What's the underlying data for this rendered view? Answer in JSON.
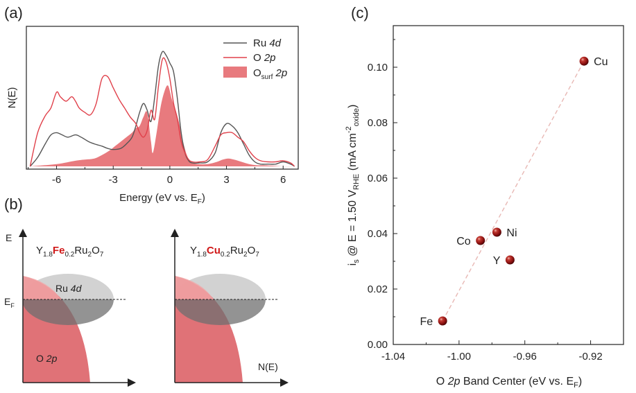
{
  "panels": {
    "a": {
      "label": "(a)"
    },
    "b": {
      "label": "(b)"
    },
    "c": {
      "label": "(c)"
    }
  },
  "colors": {
    "ru": "#555555",
    "o": "#e0404a",
    "osurf_fill": "#e87a7e",
    "sphere": "#8b1010",
    "fit_line": "#e8b8b4",
    "accent_red": "#d01818"
  },
  "pdos": {
    "ylabel": "N(E)",
    "xlabel": "Energy (eV vs. E",
    "xlabel_sub": "F",
    "xlabel_close": ")",
    "legend": {
      "ru_main": "Ru ",
      "ru_em": "4d",
      "o_main": "O ",
      "o_em": "2p",
      "osurf_main": "O",
      "osurf_sub": "surf",
      "osurf_em": " 2p"
    }
  },
  "schematic": {
    "left": {
      "formula_Y": "Y",
      "formula_Ysub": "1.8",
      "formula_dopant": "Fe",
      "formula_dsub": "0.2",
      "formula_Ru": "Ru",
      "formula_Rusub": "2",
      "formula_O": "O",
      "formula_Osub": "7",
      "energy_axis": "E",
      "fermi": "E",
      "fermi_sub": "F",
      "ru_band_main": "Ru ",
      "ru_band_em": "4d",
      "o_band_main": "O ",
      "o_band_em": "2p"
    },
    "right": {
      "formula_Y": "Y",
      "formula_Ysub": "1.8",
      "formula_dopant": "Cu",
      "formula_dsub": "0.2",
      "formula_Ru": "Ru",
      "formula_Rusub": "2",
      "formula_O": "O",
      "formula_Osub": "7",
      "dos_axis": "N(E)"
    }
  },
  "chart_data": [
    {
      "type": "line",
      "title": "",
      "xlabel": "Energy (eV vs. EF)",
      "ylabel": "N(E)",
      "xlim": [
        -7.6,
        6.8
      ],
      "xticks": [
        -6,
        -3,
        0,
        3,
        6
      ],
      "ylim": [
        0,
        1.0
      ],
      "series": [
        {
          "name": "Ru 4d",
          "style": "line",
          "x": [
            -7.4,
            -7.0,
            -6.6,
            -6.3,
            -6.0,
            -5.7,
            -5.4,
            -5.0,
            -4.7,
            -4.3,
            -4.0,
            -3.6,
            -3.3,
            -3.0,
            -2.6,
            -2.3,
            -2.0,
            -1.8,
            -1.6,
            -1.4,
            -1.2,
            -1.0,
            -0.8,
            -0.6,
            -0.4,
            -0.2,
            0.0,
            0.2,
            0.4,
            0.6,
            0.8,
            1.0,
            1.2,
            1.6,
            2.0,
            2.4,
            2.7,
            3.0,
            3.3,
            3.6,
            3.9,
            4.2,
            4.5,
            4.8,
            5.2,
            5.6,
            6.0,
            6.4,
            6.6
          ],
          "y": [
            0.0,
            0.08,
            0.2,
            0.28,
            0.3,
            0.28,
            0.26,
            0.28,
            0.26,
            0.22,
            0.2,
            0.18,
            0.16,
            0.15,
            0.16,
            0.2,
            0.26,
            0.36,
            0.48,
            0.56,
            0.5,
            0.4,
            0.62,
            0.9,
            1.02,
            0.99,
            0.92,
            0.84,
            0.6,
            0.3,
            0.12,
            0.05,
            0.03,
            0.03,
            0.04,
            0.12,
            0.3,
            0.38,
            0.36,
            0.3,
            0.2,
            0.1,
            0.04,
            0.02,
            0.02,
            0.02,
            0.04,
            0.02,
            0.0
          ]
        },
        {
          "name": "O 2p",
          "style": "line",
          "x": [
            -7.4,
            -7.0,
            -6.6,
            -6.3,
            -6.0,
            -5.8,
            -5.5,
            -5.2,
            -5.0,
            -4.8,
            -4.5,
            -4.2,
            -3.9,
            -3.6,
            -3.3,
            -3.0,
            -2.7,
            -2.4,
            -2.1,
            -1.8,
            -1.6,
            -1.4,
            -1.2,
            -1.0,
            -0.8,
            -0.6,
            -0.4,
            -0.2,
            0.0,
            0.2,
            0.4,
            0.6,
            0.8,
            1.0,
            1.2,
            1.6,
            2.0,
            2.4,
            2.7,
            3.0,
            3.3,
            3.6,
            3.9,
            4.2,
            4.5,
            4.8,
            5.2,
            5.6,
            6.0,
            6.4,
            6.6
          ],
          "y": [
            0.0,
            0.3,
            0.45,
            0.52,
            0.66,
            0.62,
            0.58,
            0.62,
            0.58,
            0.52,
            0.48,
            0.46,
            0.56,
            0.78,
            0.8,
            0.7,
            0.6,
            0.52,
            0.44,
            0.38,
            0.3,
            0.26,
            0.32,
            0.5,
            0.42,
            0.72,
            0.95,
            0.93,
            0.78,
            0.56,
            0.42,
            0.22,
            0.12,
            0.06,
            0.04,
            0.04,
            0.06,
            0.18,
            0.28,
            0.3,
            0.3,
            0.26,
            0.22,
            0.14,
            0.08,
            0.05,
            0.04,
            0.04,
            0.05,
            0.03,
            0.0
          ]
        },
        {
          "name": "Osurf 2p",
          "style": "area",
          "x": [
            -7.4,
            -6.0,
            -5.0,
            -4.5,
            -4.0,
            -3.6,
            -3.2,
            -2.9,
            -2.6,
            -2.3,
            -2.0,
            -1.8,
            -1.6,
            -1.4,
            -1.2,
            -1.0,
            -0.9,
            -0.7,
            -0.5,
            -0.3,
            -0.1,
            0.1,
            0.3,
            0.5,
            0.7,
            0.9,
            1.1,
            1.5,
            2.0,
            2.5,
            2.8,
            3.1,
            3.4,
            3.8,
            4.2,
            4.6,
            5.0,
            6.0,
            6.6
          ],
          "y": [
            0.0,
            0.02,
            0.05,
            0.06,
            0.07,
            0.1,
            0.14,
            0.18,
            0.22,
            0.26,
            0.3,
            0.34,
            0.36,
            0.44,
            0.48,
            0.22,
            0.12,
            0.3,
            0.52,
            0.66,
            0.72,
            0.6,
            0.5,
            0.38,
            0.22,
            0.1,
            0.04,
            0.02,
            0.02,
            0.04,
            0.06,
            0.07,
            0.06,
            0.04,
            0.02,
            0.01,
            0.01,
            0.0,
            0.0
          ]
        }
      ],
      "legend": [
        "Ru 4d",
        "O 2p",
        "Osurf 2p"
      ],
      "legend_position": "top-right"
    },
    {
      "type": "scatter",
      "title": "",
      "xlabel": "O 2p Band Center (eV vs. EF)",
      "ylabel": "is @ E = 1.50 VRHE (mA cm-2oxide)",
      "xlim": [
        -1.04,
        -0.9
      ],
      "ylim": [
        0.0,
        0.115
      ],
      "xticks": [
        -1.04,
        -1.0,
        -0.96,
        -0.92
      ],
      "yticks": [
        0.0,
        0.02,
        0.04,
        0.06,
        0.08,
        0.1
      ],
      "points": [
        {
          "label": "Fe",
          "x": -1.01,
          "y": 0.0085,
          "label_side": "left"
        },
        {
          "label": "Co",
          "x": -0.987,
          "y": 0.0375,
          "label_side": "left"
        },
        {
          "label": "Ni",
          "x": -0.977,
          "y": 0.0405,
          "label_side": "right"
        },
        {
          "label": "Y",
          "x": -0.969,
          "y": 0.0305,
          "label_side": "left"
        },
        {
          "label": "Cu",
          "x": -0.924,
          "y": 0.1022,
          "label_side": "right"
        }
      ],
      "fit_line": {
        "x": [
          -1.01,
          -0.924
        ],
        "y": [
          0.0085,
          0.1022
        ],
        "style": "dashed"
      }
    }
  ],
  "scatter_axes": {
    "xtick_labels": [
      "-1.04",
      "-1.00",
      "-0.96",
      "-0.92"
    ],
    "ytick_labels": [
      "0.00",
      "0.02",
      "0.04",
      "0.06",
      "0.08",
      "0.10"
    ],
    "xlabel_main": "O ",
    "xlabel_em": "2p",
    "xlabel_rest": " Band Center (eV vs. E",
    "xlabel_sub": "F",
    "xlabel_close": ")",
    "ylabel_i": "i",
    "ylabel_isub": "s",
    "ylabel_mid": " @ E = 1.50 V",
    "ylabel_vsub": "RHE",
    "ylabel_unit": " (mA cm",
    "ylabel_sup": "-2",
    "ylabel_osub": "oxide",
    "ylabel_close": ")"
  },
  "pdos_axes": {
    "xtick_labels": [
      "-6",
      "-3",
      "0",
      "3",
      "6"
    ]
  }
}
